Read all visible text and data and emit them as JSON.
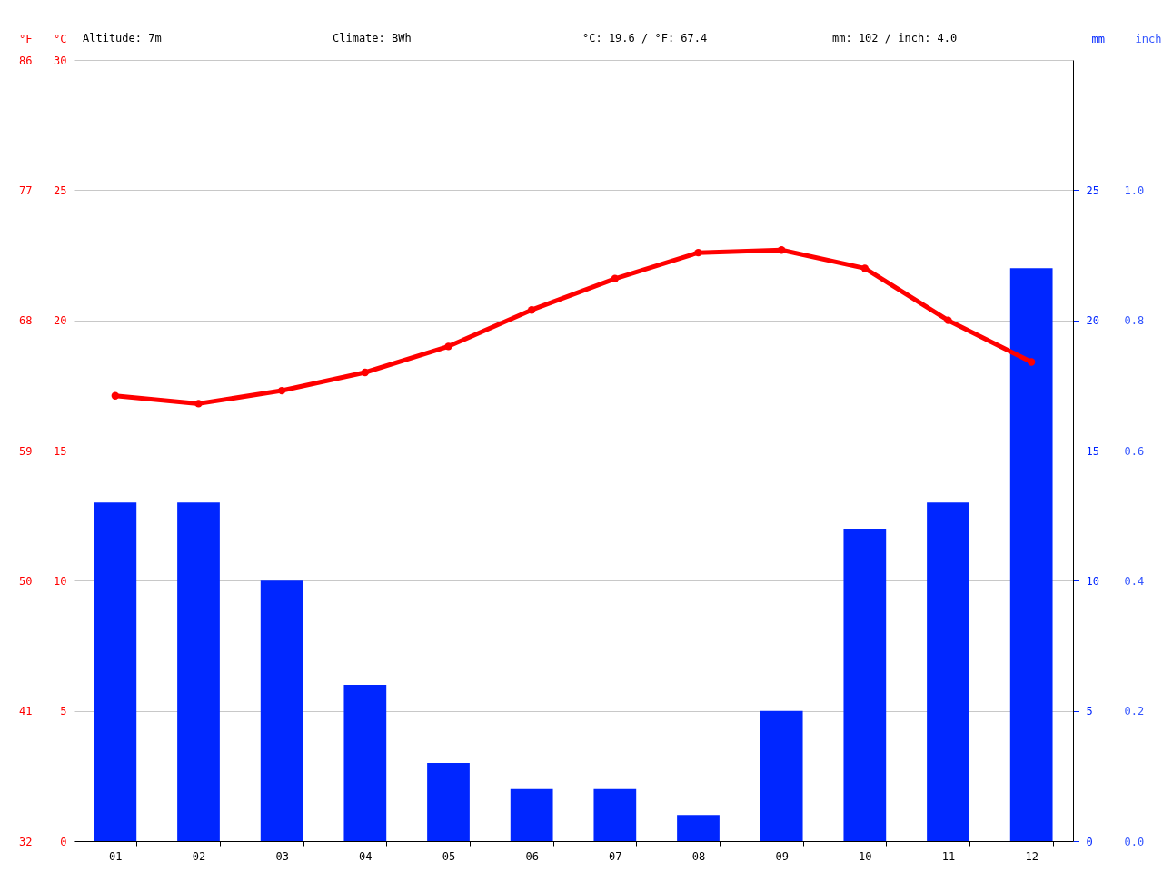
{
  "chart_data": {
    "type": "bar",
    "categories": [
      "01",
      "02",
      "03",
      "04",
      "05",
      "06",
      "07",
      "08",
      "09",
      "10",
      "11",
      "12"
    ],
    "series": [
      {
        "color": "#0026ff",
        "axis": "y2",
        "values": [
          13,
          13,
          10,
          6,
          3,
          2,
          2,
          1,
          5,
          12,
          13,
          22
        ]
      },
      {
        "type": "line",
        "color": "#ff0000",
        "axis": "y",
        "values": [
          17.1,
          16.8,
          17.3,
          18.0,
          19.0,
          20.4,
          21.6,
          22.6,
          22.7,
          22.0,
          20.0,
          18.4
        ]
      }
    ],
    "marker": "circle",
    "grid": "y",
    "ylabel": "°C",
    "ylim": [
      0,
      30
    ],
    "yticks": [
      0,
      5,
      10,
      15,
      20,
      25,
      30
    ],
    "y2label": "mm",
    "y2lim": [
      0,
      30
    ],
    "y2ticks": [
      0,
      5,
      10,
      15,
      20,
      25
    ],
    "y3label": "°F",
    "y3lim": [
      32,
      86
    ],
    "y3ticks": [
      32,
      41,
      50,
      59,
      68,
      77,
      86
    ],
    "annotations": [
      "Altitude: 7m",
      "Climate: BWh",
      "°C: 19.6 / °F: 67.4",
      "mm: 102 / inch: 4.0",
      "inch",
      "0.0",
      "0.2",
      "0.4",
      "0.6",
      "0.8",
      "1.0"
    ]
  }
}
